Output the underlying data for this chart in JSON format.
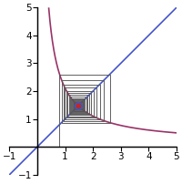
{
  "title": "",
  "xlim": [
    -1,
    5
  ],
  "ylim": [
    -1,
    5
  ],
  "a1": 0.8,
  "num_iterations": 50,
  "line_color": "#4455cc",
  "curve_color": "#993366",
  "cobweb_color": "#555555",
  "cobweb_lw": 0.65,
  "bg_color": "#ffffff",
  "axis_color": "#000000",
  "xlabel_ticks": [
    -1,
    1,
    2,
    3,
    4,
    5
  ],
  "ylabel_ticks": [
    -1,
    1,
    2,
    3,
    4,
    5
  ],
  "tick_labelsize": 7.5,
  "fp_x_color": "#cc2222",
  "fp_o_color": "#4455cc",
  "figw": 2.0,
  "figh": 2.02,
  "dpi": 100
}
